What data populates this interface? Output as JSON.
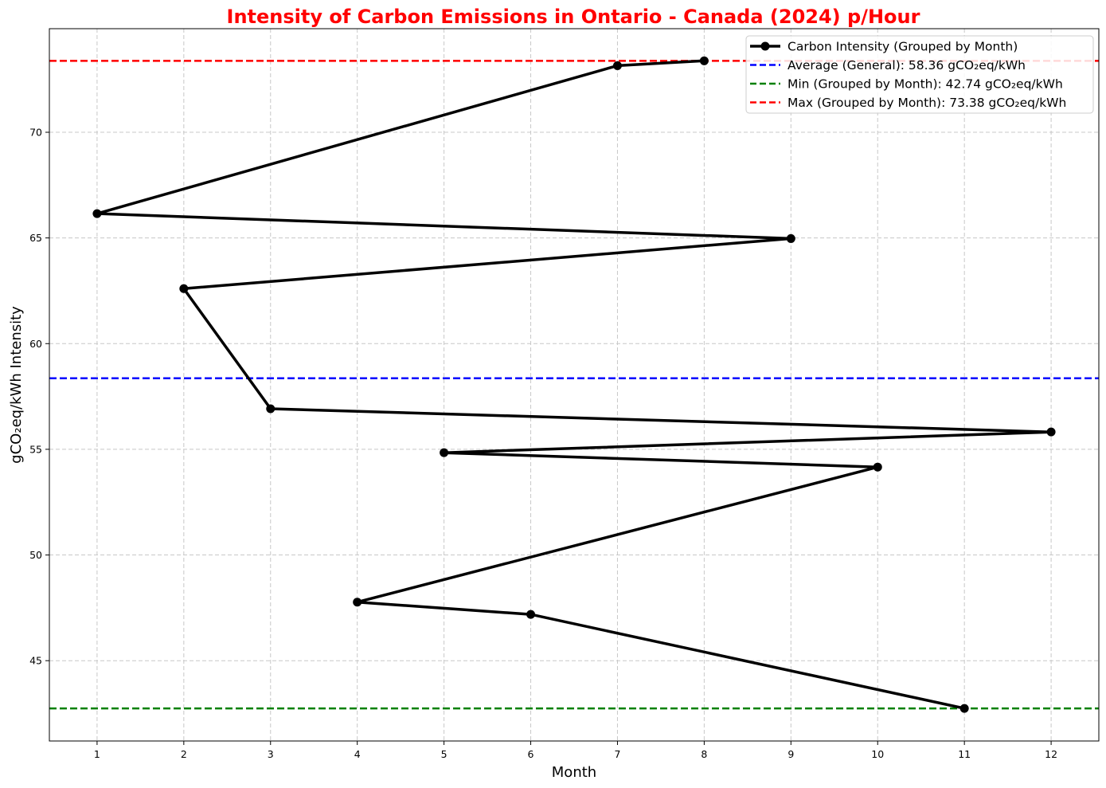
{
  "chart_data": {
    "type": "line",
    "title": "Intensity of Carbon Emissions in Ontario - Canada (2024) p/Hour",
    "xlabel": "Month",
    "ylabel": "gCO₂eq/kWh Intensity",
    "xlim": [
      0.45,
      12.55
    ],
    "ylim": [
      41.2,
      74.9
    ],
    "xticks": [
      1,
      2,
      3,
      4,
      5,
      6,
      7,
      8,
      9,
      10,
      11,
      12
    ],
    "yticks": [
      45,
      50,
      55,
      60,
      65,
      70
    ],
    "grid": true,
    "legend_position": "top-right",
    "series": [
      {
        "name": "Carbon Intensity (Grouped by Month)",
        "color": "#000000",
        "marker": "circle",
        "x": [
          8,
          7,
          1,
          9,
          2,
          3,
          12,
          5,
          10,
          4,
          6,
          11
        ],
        "y": [
          73.38,
          73.15,
          66.15,
          64.97,
          62.6,
          56.92,
          55.82,
          54.84,
          54.16,
          47.77,
          47.19,
          42.74
        ]
      }
    ],
    "reference_lines": [
      {
        "name": "Average (General): 58.36 gCO₂eq/kWh",
        "value": 58.36,
        "color": "#0000ff",
        "style": "dashed"
      },
      {
        "name": "Min (Grouped by Month): 42.74 gCO₂eq/kWh",
        "value": 42.74,
        "color": "#008000",
        "style": "dashed"
      },
      {
        "name": "Max (Grouped by Month): 73.38 gCO₂eq/kWh",
        "value": 73.38,
        "color": "#ff0000",
        "style": "dashed"
      }
    ]
  }
}
